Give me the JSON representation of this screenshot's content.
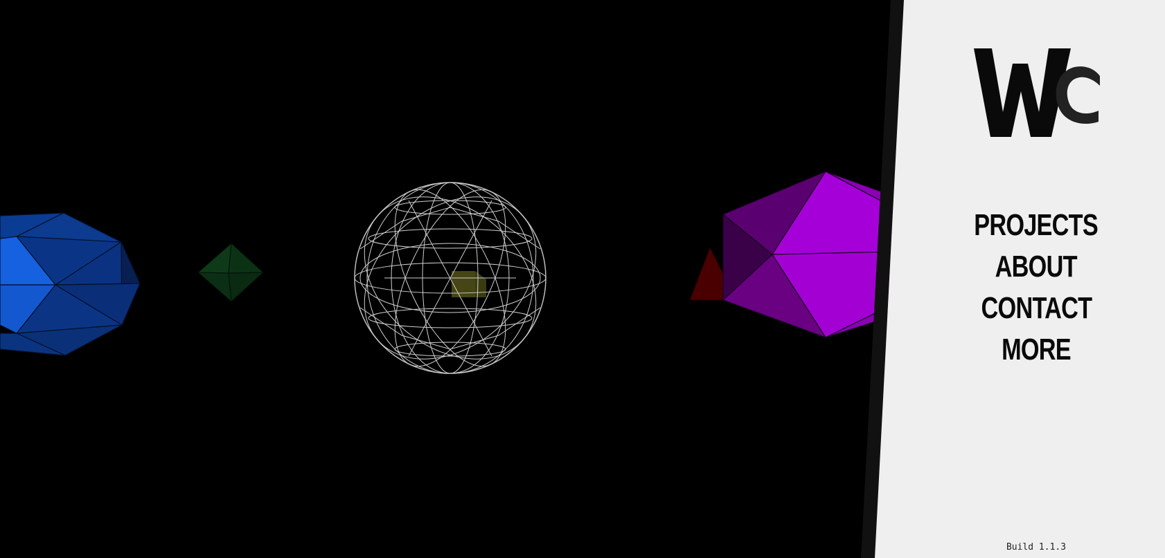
{
  "logo": {
    "text": "Wc",
    "icon": "wc-logo-icon"
  },
  "nav": {
    "items": [
      {
        "label": "PROJECTS"
      },
      {
        "label": "ABOUT"
      },
      {
        "label": "CONTACT"
      },
      {
        "label": "MORE"
      }
    ]
  },
  "footer": {
    "build": "Build 1.1.3"
  },
  "colors": {
    "background": "#000000",
    "panel": "#efefef",
    "text": "#0a0a0a",
    "blue_shape": "#0b3a8c",
    "green_shape": "#0f3a1a",
    "wire_sphere": "#cfcfcf",
    "yellow_cube": "#3a3a10",
    "red_shape": "#4a0000",
    "purple_shape": "#a400d4"
  },
  "scene": {
    "shapes": [
      "blue-icosphere",
      "green-octahedron",
      "wireframe-sphere",
      "yellow-cube",
      "red-tetrahedron",
      "purple-icosahedron"
    ]
  }
}
